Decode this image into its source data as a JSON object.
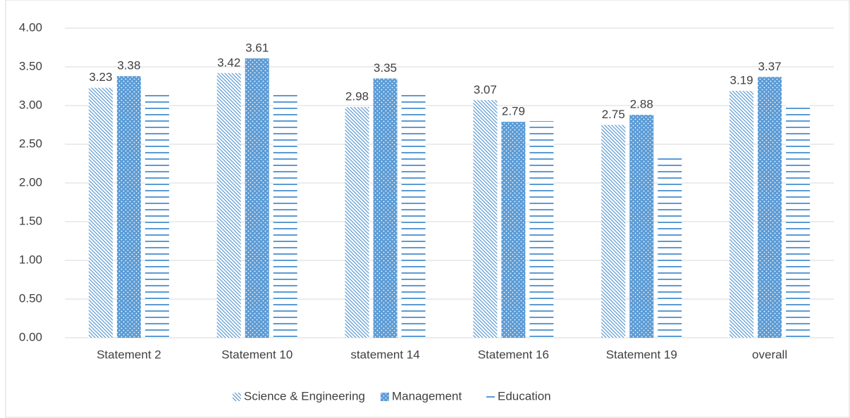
{
  "chart_data": {
    "type": "bar",
    "categories": [
      "Statement 2",
      "Statement 10",
      "statement 14",
      "Statement 16",
      "Statement 19",
      "overall"
    ],
    "series": [
      {
        "name": "Science & Engineering",
        "color": "#5b9bd5",
        "pattern": "diagonal",
        "labels": true,
        "values": [
          3.23,
          3.42,
          2.98,
          3.07,
          2.75,
          3.19
        ]
      },
      {
        "name": "Management",
        "color": "#5b9bd5",
        "pattern": "dots",
        "labels": true,
        "values": [
          3.38,
          3.61,
          3.35,
          2.79,
          2.88,
          3.37
        ]
      },
      {
        "name": "Education",
        "color": "#5b9bd5",
        "pattern": "horizontal",
        "labels": false,
        "values": [
          3.18,
          3.18,
          3.18,
          2.8,
          2.34,
          3.02
        ]
      }
    ],
    "ylim": [
      0,
      4
    ],
    "yticks": [
      {
        "value": 0,
        "label": "0.00"
      },
      {
        "value": 0.5,
        "label": "0.50"
      },
      {
        "value": 1,
        "label": "1.00"
      },
      {
        "value": 1.5,
        "label": "1.50"
      },
      {
        "value": 2,
        "label": "2.00"
      },
      {
        "value": 2.5,
        "label": "2.50"
      },
      {
        "value": 3,
        "label": "3.00"
      },
      {
        "value": 3.5,
        "label": "3.50"
      },
      {
        "value": 4,
        "label": "4.00"
      }
    ],
    "grid": true,
    "legend": "bottom"
  }
}
